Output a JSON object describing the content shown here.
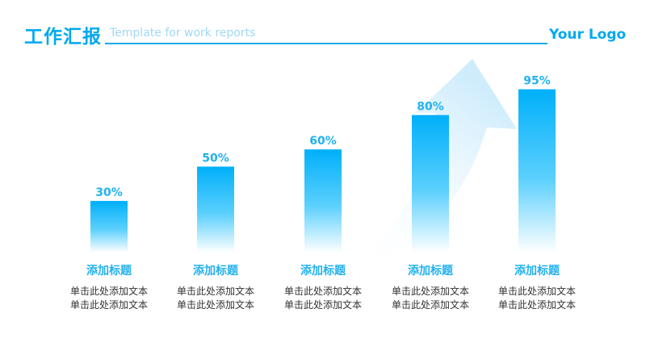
{
  "header": {
    "title": "工作汇报",
    "subtitle": "Template for work reports",
    "logo": "Your Logo"
  },
  "colors": {
    "accent": "#00a8f0",
    "bar_top": "#00b0fa",
    "bar_bottom": "#ffffff",
    "arrow": "#d8f0fd",
    "text": "#333333"
  },
  "chart_data": {
    "type": "bar",
    "categories": [
      "添加标题",
      "添加标题",
      "添加标题",
      "添加标题",
      "添加标题"
    ],
    "values": [
      30,
      50,
      60,
      80,
      95
    ],
    "value_labels": [
      "30%",
      "50%",
      "60%",
      "80%",
      "95%"
    ],
    "ylim": [
      0,
      100
    ],
    "grid": false,
    "legend": "none",
    "descriptions": [
      [
        "单击此处添加文本",
        "单击此处添加文本"
      ],
      [
        "单击此处添加文本",
        "单击此处添加文本"
      ],
      [
        "单击此处添加文本",
        "单击此处添加文本"
      ],
      [
        "单击此处添加文本",
        "单击此处添加文本"
      ],
      [
        "单击此处添加文本",
        "单击此处添加文本"
      ]
    ]
  }
}
